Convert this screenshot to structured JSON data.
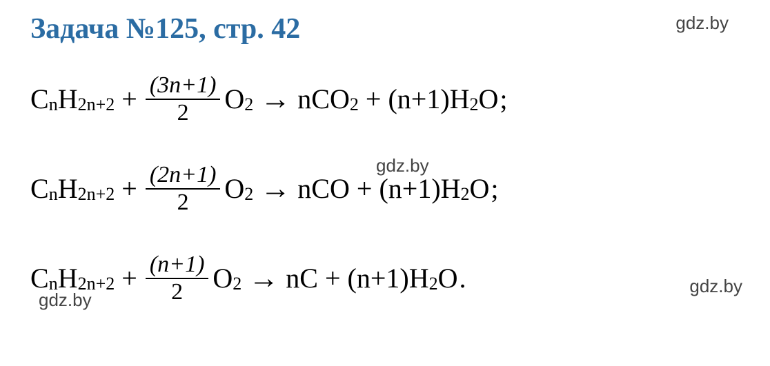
{
  "heading": "Задача №125, стр. 42",
  "watermark": "gdz.by",
  "colors": {
    "heading": "#2b6ca3",
    "text": "#000000",
    "watermark": "#444444",
    "background": "#ffffff"
  },
  "typography": {
    "heading_fontsize": 42,
    "equation_fontsize": 40,
    "fraction_fontsize": 34,
    "watermark_fontsize": 26,
    "heading_weight": "bold",
    "font_family": "Times New Roman"
  },
  "equations": [
    {
      "reactant1": {
        "base": "C",
        "sub1": "n",
        "base2": "H",
        "sub2": "2n+2"
      },
      "frac_num": "(3n+1)",
      "frac_den": "2",
      "o2": {
        "base": "O",
        "sub": "2"
      },
      "product1_coef": "n",
      "product1": {
        "base": "CO",
        "sub": "2"
      },
      "product2_coef": "(n+1)",
      "product2": {
        "base": "H",
        "sub1": "2",
        "base2": "O"
      },
      "terminator": ";"
    },
    {
      "reactant1": {
        "base": "C",
        "sub1": "n",
        "base2": "H",
        "sub2": "2n+2"
      },
      "frac_num": "(2n+1)",
      "frac_den": "2",
      "o2": {
        "base": "O",
        "sub": "2"
      },
      "product1_coef": "n",
      "product1": {
        "base": "CO",
        "sub": ""
      },
      "product2_coef": "(n+1)",
      "product2": {
        "base": "H",
        "sub1": "2",
        "base2": "O"
      },
      "terminator": ";"
    },
    {
      "reactant1": {
        "base": "C",
        "sub1": "n",
        "base2": "H",
        "sub2": "2n+2"
      },
      "frac_num": "(n+1)",
      "frac_den": "2",
      "o2": {
        "base": "O",
        "sub": "2"
      },
      "product1_coef": "n",
      "product1": {
        "base": "C",
        "sub": ""
      },
      "product2_coef": "(n+1)",
      "product2": {
        "base": "H",
        "sub1": "2",
        "base2": "O"
      },
      "terminator": "."
    }
  ]
}
